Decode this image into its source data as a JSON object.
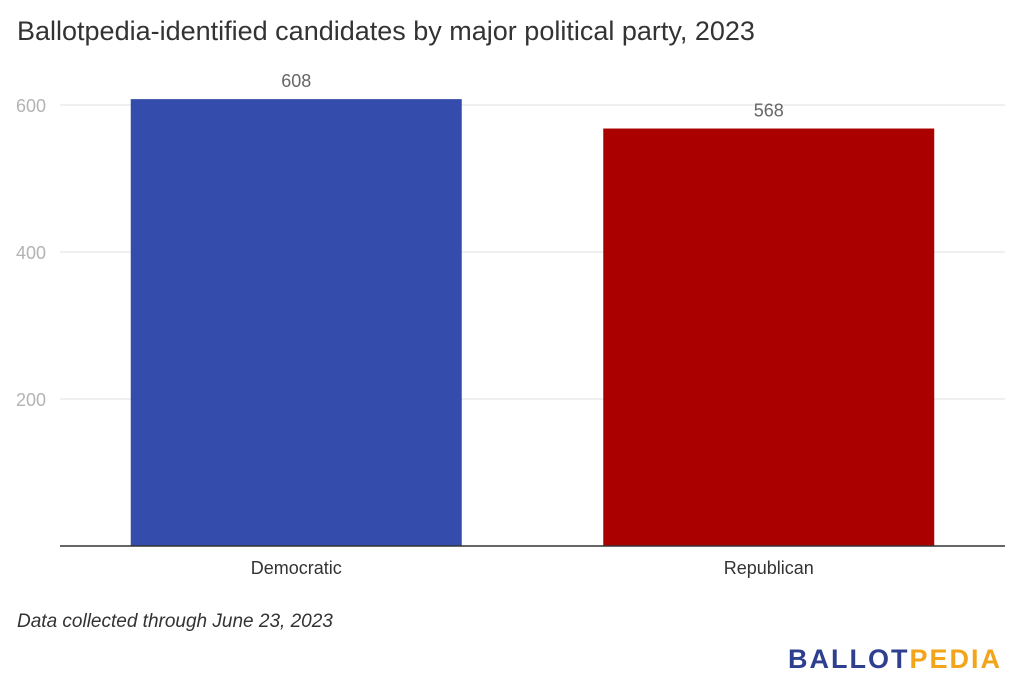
{
  "chart_data": {
    "type": "bar",
    "title": "Ballotpedia-identified candidates by major political party, 2023",
    "categories": [
      "Democratic",
      "Republican"
    ],
    "values": [
      608,
      568
    ],
    "colors": [
      "#344cab",
      "#aa0000"
    ],
    "ylim": [
      0,
      650
    ],
    "yticks": [
      200,
      400,
      600
    ],
    "grid": true,
    "legend": "none",
    "xlabel": "",
    "ylabel": ""
  },
  "footnote": "Data collected through June 23, 2023",
  "logo": {
    "part_a": "BALLOT",
    "part_b": "PEDIA"
  }
}
